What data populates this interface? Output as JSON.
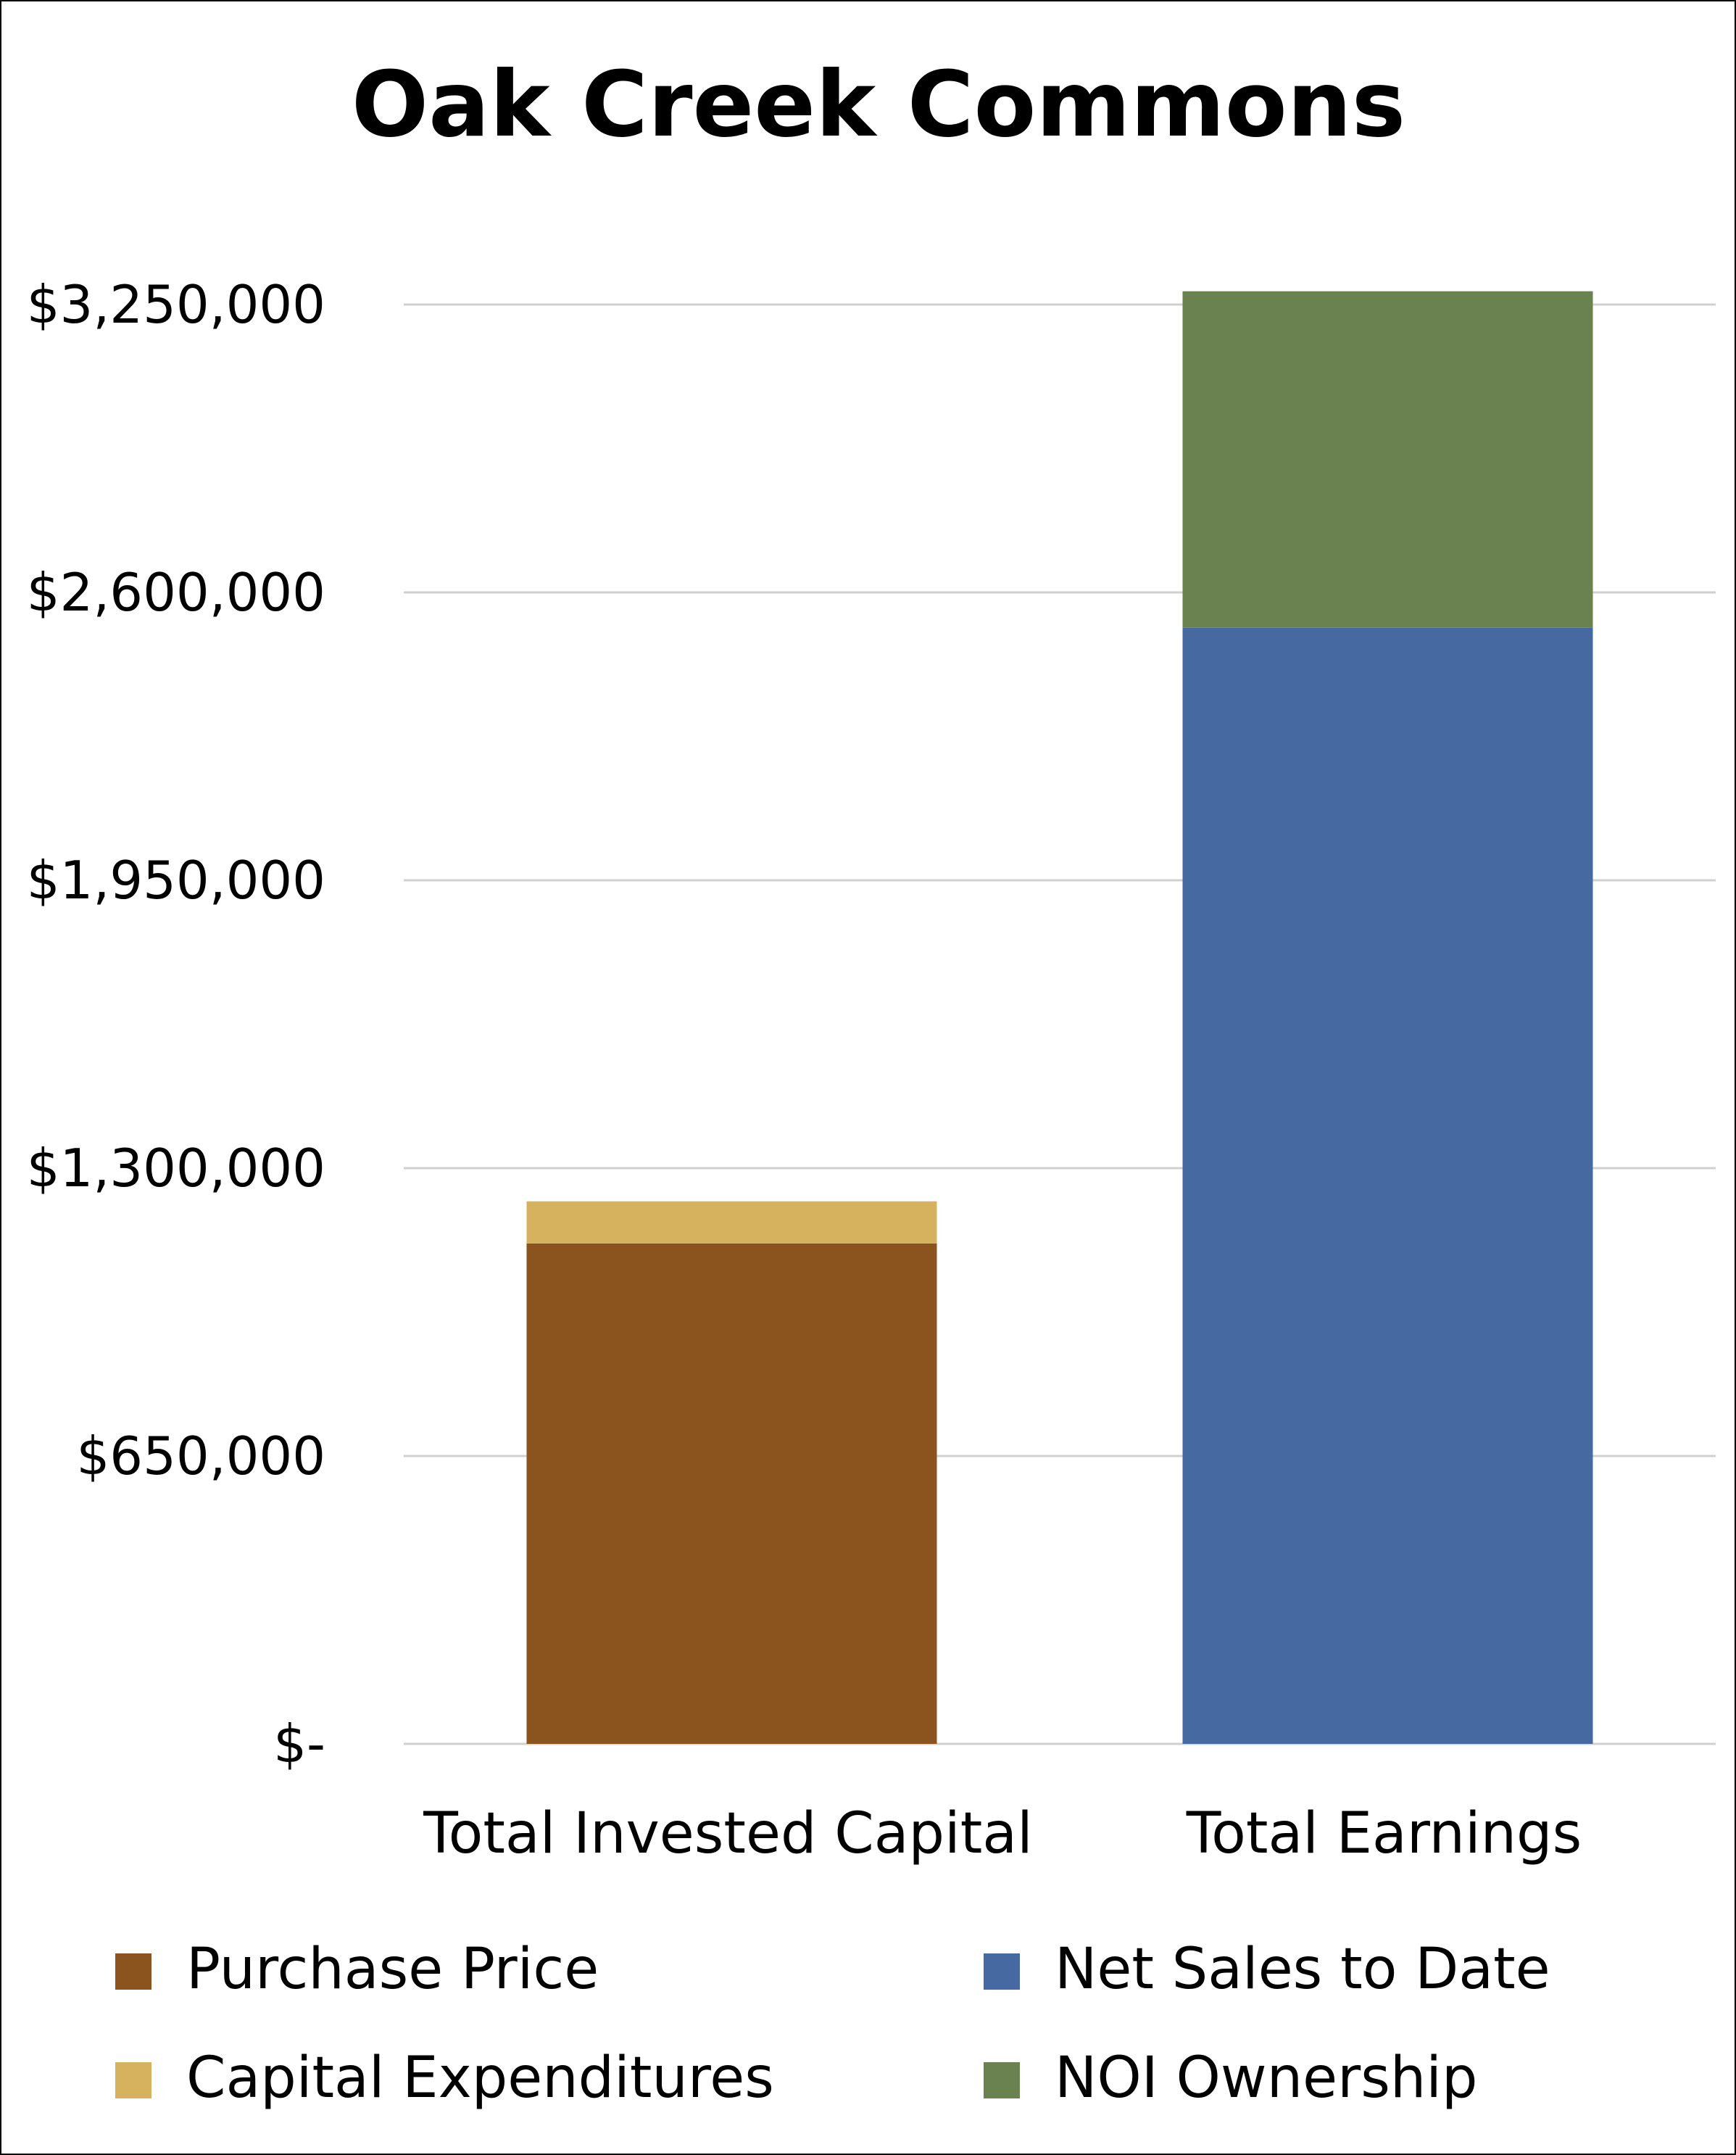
{
  "chart_data": {
    "type": "bar",
    "stacked": true,
    "title": "Oak Creek Commons",
    "xlabel": "",
    "ylabel": "",
    "categories": [
      "Total Invested Capital",
      "Total Earnings"
    ],
    "series": [
      {
        "name": "Purchase Price",
        "color": "#8B531E",
        "values": [
          1130000,
          0
        ]
      },
      {
        "name": "Capital Expenditures",
        "color": "#D6B25F",
        "values": [
          95000,
          0
        ]
      },
      {
        "name": "Net Sales to Date",
        "color": "#4669A2",
        "values": [
          0,
          2520000
        ]
      },
      {
        "name": "NOI Ownership",
        "color": "#6A8250",
        "values": [
          0,
          760000
        ]
      }
    ],
    "ylim": [
      0,
      3250000
    ],
    "yticks": [
      {
        "value": 0,
        "label": "$-"
      },
      {
        "value": 650000,
        "label": "$650,000"
      },
      {
        "value": 1300000,
        "label": "$1,300,000"
      },
      {
        "value": 1950000,
        "label": "$1,950,000"
      },
      {
        "value": 2600000,
        "label": "$2,600,000"
      },
      {
        "value": 3250000,
        "label": "$3,250,000"
      }
    ],
    "grid": true,
    "legend_position": "bottom"
  }
}
